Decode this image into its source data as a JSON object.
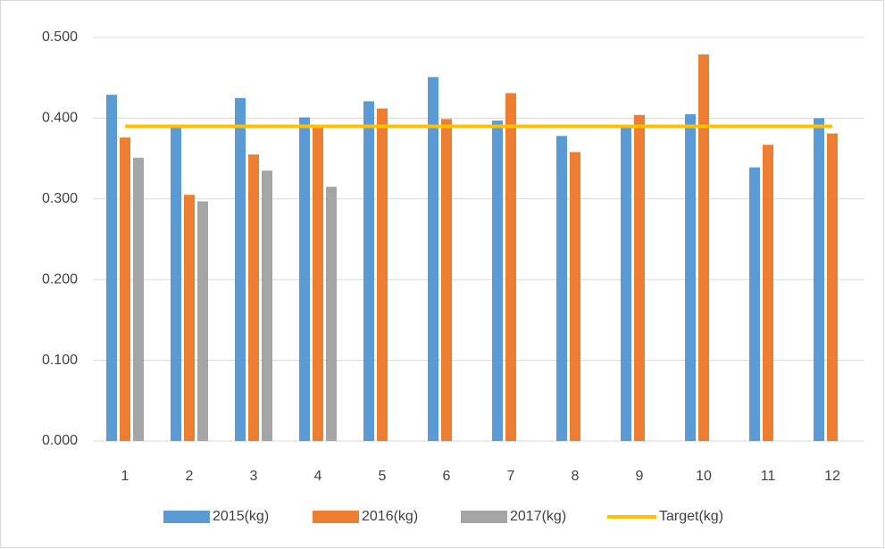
{
  "chart_data": {
    "type": "bar",
    "categories": [
      "1",
      "2",
      "3",
      "4",
      "5",
      "6",
      "7",
      "8",
      "9",
      "10",
      "11",
      "12"
    ],
    "series": [
      {
        "name": "2015(kg)",
        "color": "#5b9bd5",
        "type": "bar",
        "values": [
          0.429,
          0.391,
          0.425,
          0.401,
          0.421,
          0.451,
          0.397,
          0.378,
          0.39,
          0.405,
          0.339,
          0.4
        ]
      },
      {
        "name": "2016(kg)",
        "color": "#ed7d31",
        "type": "bar",
        "values": [
          0.376,
          0.305,
          0.355,
          0.39,
          0.412,
          0.399,
          0.431,
          0.358,
          0.404,
          0.479,
          0.367,
          0.381
        ]
      },
      {
        "name": "2017(kg)",
        "color": "#a5a5a5",
        "type": "bar",
        "values": [
          0.351,
          0.297,
          0.335,
          0.315,
          null,
          null,
          null,
          null,
          null,
          null,
          null,
          null
        ]
      },
      {
        "name": "Target(kg)",
        "color": "#ffc000",
        "type": "line",
        "values": [
          0.39,
          0.39,
          0.39,
          0.39,
          0.39,
          0.39,
          0.39,
          0.39,
          0.39,
          0.39,
          0.39,
          0.39
        ]
      }
    ],
    "ylim": [
      0,
      0.5
    ],
    "yticks": [
      {
        "value": 0,
        "label": "0.000"
      },
      {
        "value": 0.1,
        "label": "0.100"
      },
      {
        "value": 0.2,
        "label": "0.200"
      },
      {
        "value": 0.3,
        "label": "0.300"
      },
      {
        "value": 0.4,
        "label": "0.400"
      },
      {
        "value": 0.5,
        "label": "0.500"
      }
    ],
    "grid": true,
    "legend": "bottom"
  }
}
